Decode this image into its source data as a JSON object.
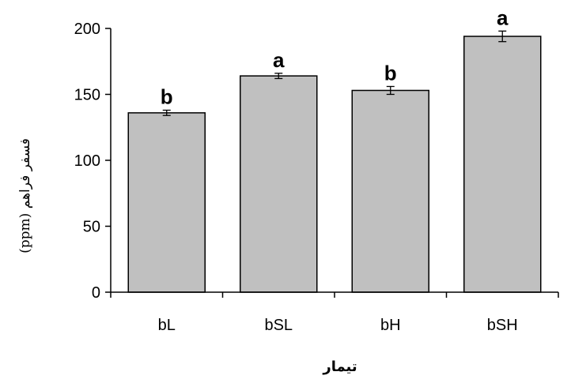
{
  "chart_data": {
    "type": "bar",
    "categories": [
      "bL",
      "bSL",
      "bH",
      "bSH"
    ],
    "values": [
      136,
      164,
      153,
      194
    ],
    "errors": [
      2,
      2,
      3,
      4
    ],
    "significance": [
      "b",
      "a",
      "b",
      "a"
    ],
    "xlabel": "تیمار",
    "ylabel": "فسفر فراهم (ppm)",
    "ylim": [
      0,
      200
    ],
    "yticks": [
      0,
      50,
      100,
      150,
      200
    ],
    "grid": false,
    "colors": {
      "bar_fill": "#c0c0c0",
      "bar_stroke": "#000000",
      "axis": "#000000"
    }
  }
}
